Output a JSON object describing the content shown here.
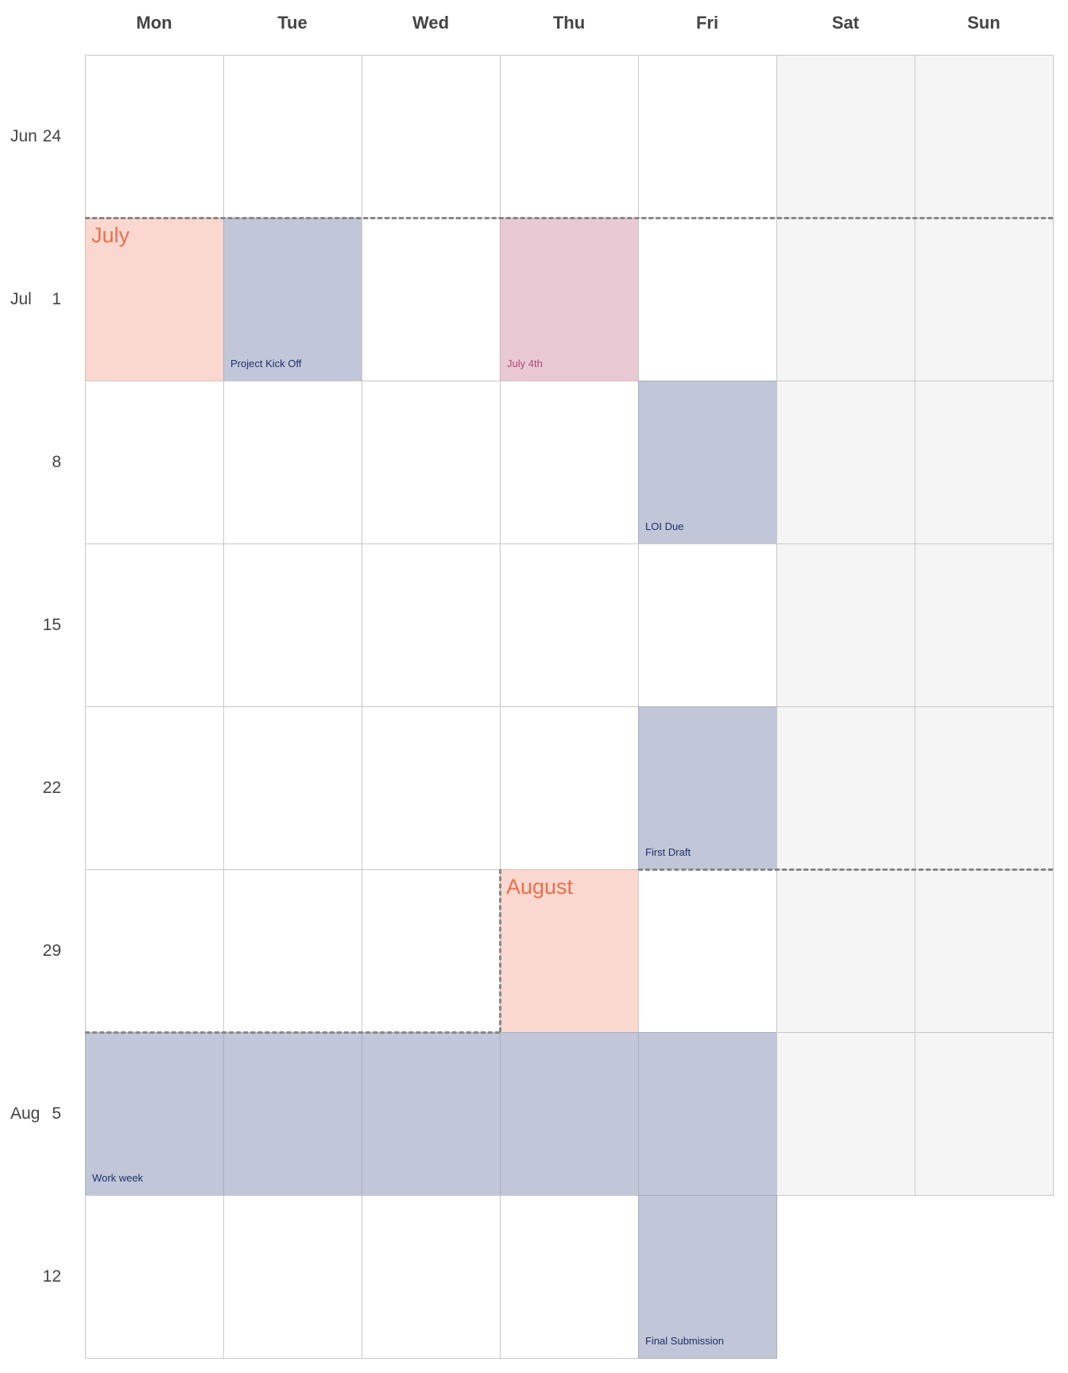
{
  "calendar": {
    "weekday_headers": [
      "Mon",
      "Tue",
      "Wed",
      "Thu",
      "Fri",
      "Sat",
      "Sun"
    ],
    "weeks": [
      {
        "month": "Jun",
        "day": "24"
      },
      {
        "month": "Jul",
        "day": "1"
      },
      {
        "month": "",
        "day": "8"
      },
      {
        "month": "",
        "day": "15"
      },
      {
        "month": "",
        "day": "22"
      },
      {
        "month": "",
        "day": "29"
      },
      {
        "month": "Aug",
        "day": "5"
      },
      {
        "month": "",
        "day": "12"
      }
    ],
    "month_markers": [
      {
        "label": "July",
        "week": 1,
        "weekday": 0
      },
      {
        "label": "August",
        "week": 5,
        "weekday": 3
      }
    ],
    "events": [
      {
        "label": "Project Kick Off",
        "week": 1,
        "weekday": 1,
        "kind": "event"
      },
      {
        "label": "July 4th",
        "week": 1,
        "weekday": 3,
        "kind": "holiday"
      },
      {
        "label": "LOI Due",
        "week": 2,
        "weekday": 4,
        "kind": "event"
      },
      {
        "label": "First Draft",
        "week": 4,
        "weekday": 4,
        "kind": "event"
      },
      {
        "label": "Work week",
        "week": 6,
        "weekday": 0,
        "kind": "event",
        "span_days": 5
      },
      {
        "label": "Final Submission",
        "week": 7,
        "weekday": 4,
        "kind": "event"
      }
    ],
    "colors": {
      "event_fill": "#c1c7d8",
      "event_text": "#1f2f6a",
      "holiday_fill": "#e8c9d4",
      "holiday_text": "#b14a73",
      "month_fill": "#fbd8cf",
      "month_text": "#e8704e",
      "weekend_fill": "#f5f5f5"
    }
  }
}
